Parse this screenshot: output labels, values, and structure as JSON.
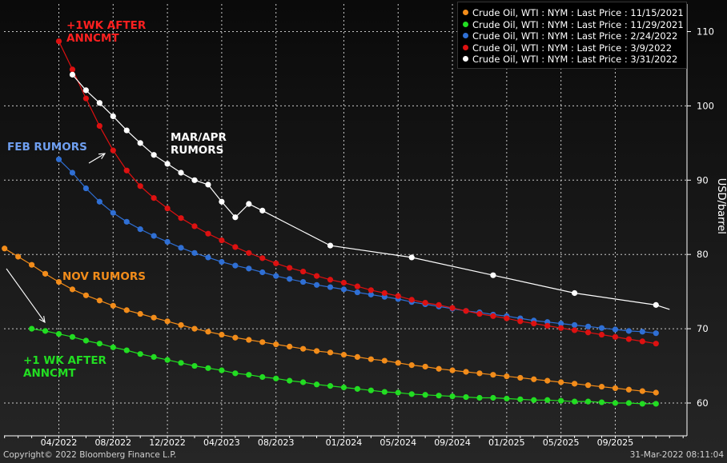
{
  "chart_data": {
    "type": "line",
    "ylabel": "USD/barrel",
    "ylim": [
      56,
      116
    ],
    "yticks": [
      60,
      70,
      80,
      90,
      100,
      110
    ],
    "x_ticks": [
      "04/2022",
      "08/2022",
      "12/2022",
      "04/2023",
      "08/2023",
      "01/2024",
      "05/2024",
      "09/2024",
      "01/2025",
      "05/2025",
      "09/2025"
    ],
    "grid": true,
    "legend_position": "top-right",
    "series": [
      {
        "name": "Crude Oil, WTI : NYM : Last Price : 11/15/2021",
        "color": "#f28c1a",
        "x": [
          "2021-12-01",
          "2022-01-01",
          "2022-02-01",
          "2022-03-01",
          "2022-04-01",
          "2022-05-01",
          "2022-06-01",
          "2022-07-01",
          "2022-08-01",
          "2022-09-01",
          "2022-10-01",
          "2022-11-01",
          "2022-12-01",
          "2023-01-01",
          "2023-02-01",
          "2023-03-01",
          "2023-04-01",
          "2023-05-01",
          "2023-06-01",
          "2023-07-01",
          "2023-08-01",
          "2023-09-01",
          "2023-10-01",
          "2023-11-01",
          "2023-12-01",
          "2024-01-01",
          "2024-02-01",
          "2024-03-01",
          "2024-04-01",
          "2024-05-01",
          "2024-06-01",
          "2024-07-01",
          "2024-08-01",
          "2024-09-01",
          "2024-10-01",
          "2024-11-01",
          "2024-12-01",
          "2025-01-01",
          "2025-02-01",
          "2025-03-01",
          "2025-04-01",
          "2025-05-01",
          "2025-06-01",
          "2025-07-01",
          "2025-08-01",
          "2025-09-01",
          "2025-10-01",
          "2025-11-01",
          "2025-12-01"
        ],
        "values": [
          80.8,
          79.7,
          78.6,
          77.4,
          76.3,
          75.3,
          74.5,
          73.8,
          73.1,
          72.5,
          72.0,
          71.5,
          71.0,
          70.5,
          70.0,
          69.6,
          69.2,
          68.8,
          68.5,
          68.2,
          67.9,
          67.6,
          67.3,
          67.0,
          66.8,
          66.5,
          66.2,
          65.9,
          65.7,
          65.4,
          65.1,
          64.9,
          64.6,
          64.4,
          64.2,
          64.0,
          63.8,
          63.6,
          63.4,
          63.2,
          63.0,
          62.8,
          62.6,
          62.4,
          62.2,
          62.0,
          61.8,
          61.6,
          61.4
        ]
      },
      {
        "name": "Crude Oil, WTI : NYM : Last Price : 11/29/2021",
        "color": "#22dd22",
        "x": [
          "2022-02-01",
          "2022-03-01",
          "2022-04-01",
          "2022-05-01",
          "2022-06-01",
          "2022-07-01",
          "2022-08-01",
          "2022-09-01",
          "2022-10-01",
          "2022-11-01",
          "2022-12-01",
          "2023-01-01",
          "2023-02-01",
          "2023-03-01",
          "2023-04-01",
          "2023-05-01",
          "2023-06-01",
          "2023-07-01",
          "2023-08-01",
          "2023-09-01",
          "2023-10-01",
          "2023-11-01",
          "2023-12-01",
          "2024-01-01",
          "2024-02-01",
          "2024-03-01",
          "2024-04-01",
          "2024-05-01",
          "2024-06-01",
          "2024-07-01",
          "2024-08-01",
          "2024-09-01",
          "2024-10-01",
          "2024-11-01",
          "2024-12-01",
          "2025-01-01",
          "2025-02-01",
          "2025-03-01",
          "2025-04-01",
          "2025-05-01",
          "2025-06-01",
          "2025-07-01",
          "2025-08-01",
          "2025-09-01",
          "2025-10-01",
          "2025-11-01",
          "2025-12-01"
        ],
        "values": [
          70.0,
          69.7,
          69.3,
          68.9,
          68.4,
          68.0,
          67.5,
          67.1,
          66.6,
          66.2,
          65.8,
          65.4,
          65.0,
          64.7,
          64.4,
          64.0,
          63.8,
          63.5,
          63.3,
          63.0,
          62.8,
          62.5,
          62.3,
          62.1,
          61.9,
          61.7,
          61.5,
          61.4,
          61.2,
          61.1,
          61.0,
          60.9,
          60.8,
          60.7,
          60.7,
          60.6,
          60.5,
          60.4,
          60.4,
          60.3,
          60.2,
          60.2,
          60.1,
          60.0,
          60.0,
          59.9,
          59.9
        ]
      },
      {
        "name": "Crude Oil, WTI : NYM : Last Price : 2/24/2022",
        "color": "#2f6fd4",
        "x": [
          "2022-04-01",
          "2022-05-01",
          "2022-06-01",
          "2022-07-01",
          "2022-08-01",
          "2022-09-01",
          "2022-10-01",
          "2022-11-01",
          "2022-12-01",
          "2023-01-01",
          "2023-02-01",
          "2023-03-01",
          "2023-04-01",
          "2023-05-01",
          "2023-06-01",
          "2023-07-01",
          "2023-08-01",
          "2023-09-01",
          "2023-10-01",
          "2023-11-01",
          "2023-12-01",
          "2024-01-01",
          "2024-02-01",
          "2024-03-01",
          "2024-04-01",
          "2024-05-01",
          "2024-06-01",
          "2024-07-01",
          "2024-08-01",
          "2024-09-01",
          "2024-10-01",
          "2024-11-01",
          "2024-12-01",
          "2025-01-01",
          "2025-02-01",
          "2025-03-01",
          "2025-04-01",
          "2025-05-01",
          "2025-06-01",
          "2025-07-01",
          "2025-08-01",
          "2025-09-01",
          "2025-10-01",
          "2025-11-01",
          "2025-12-01"
        ],
        "values": [
          92.8,
          91.0,
          88.9,
          87.1,
          85.6,
          84.4,
          83.4,
          82.5,
          81.7,
          80.9,
          80.2,
          79.6,
          79.0,
          78.5,
          78.1,
          77.6,
          77.1,
          76.7,
          76.3,
          75.9,
          75.6,
          75.3,
          74.9,
          74.6,
          74.3,
          74.0,
          73.6,
          73.3,
          73.0,
          72.7,
          72.4,
          72.2,
          71.9,
          71.7,
          71.4,
          71.1,
          70.9,
          70.7,
          70.5,
          70.3,
          70.1,
          69.9,
          69.7,
          69.6,
          69.4
        ]
      },
      {
        "name": "Crude Oil, WTI : NYM : Last Price : 3/9/2022",
        "color": "#dd1111",
        "x": [
          "2022-04-01",
          "2022-05-01",
          "2022-06-01",
          "2022-07-01",
          "2022-08-01",
          "2022-09-01",
          "2022-10-01",
          "2022-11-01",
          "2022-12-01",
          "2023-01-01",
          "2023-02-01",
          "2023-03-01",
          "2023-04-01",
          "2023-05-01",
          "2023-06-01",
          "2023-07-01",
          "2023-08-01",
          "2023-09-01",
          "2023-10-01",
          "2023-11-01",
          "2023-12-01",
          "2024-01-01",
          "2024-02-01",
          "2024-03-01",
          "2024-04-01",
          "2024-05-01",
          "2024-06-01",
          "2024-07-01",
          "2024-08-01",
          "2024-09-01",
          "2024-10-01",
          "2024-11-01",
          "2024-12-01",
          "2025-01-01",
          "2025-02-01",
          "2025-03-01",
          "2025-04-01",
          "2025-05-01",
          "2025-06-01",
          "2025-07-01",
          "2025-08-01",
          "2025-09-01",
          "2025-10-01",
          "2025-11-01",
          "2025-12-01"
        ],
        "values": [
          108.7,
          104.9,
          101.0,
          97.3,
          94.0,
          91.3,
          89.2,
          87.6,
          86.2,
          84.9,
          83.8,
          82.8,
          81.9,
          81.0,
          80.2,
          79.5,
          78.8,
          78.2,
          77.7,
          77.1,
          76.6,
          76.2,
          75.7,
          75.2,
          74.8,
          74.4,
          73.9,
          73.5,
          73.2,
          72.8,
          72.4,
          72.0,
          71.7,
          71.4,
          71.0,
          70.7,
          70.4,
          70.1,
          69.8,
          69.5,
          69.2,
          68.9,
          68.6,
          68.3,
          68.0
        ]
      },
      {
        "name": "Crude Oil, WTI : NYM : Last Price : 3/31/2022",
        "color": "#ffffff",
        "x": [
          "2022-05-01",
          "2022-06-01",
          "2022-07-01",
          "2022-08-01",
          "2022-09-01",
          "2022-10-01",
          "2022-11-01",
          "2022-12-01",
          "2023-01-01",
          "2023-02-01",
          "2023-03-01",
          "2023-04-01",
          "2023-05-01",
          "2023-06-01",
          "2023-07-01",
          "2023-12-01",
          "2024-06-01",
          "2024-12-01",
          "2025-06-01",
          "2025-12-01"
        ],
        "values": [
          104.2,
          102.1,
          100.4,
          98.6,
          96.7,
          95.0,
          93.4,
          92.2,
          91.0,
          90.0,
          89.4,
          87.1,
          85.0,
          86.8,
          85.9,
          81.2,
          79.6,
          77.2,
          74.8,
          73.2
        ]
      },
      {
        "name": "",
        "color": "#ffffff",
        "markers": false,
        "x": [
          "2025-12-01",
          "2026-01-01"
        ],
        "values": [
          73.2,
          72.6
        ]
      }
    ],
    "annotations": [
      {
        "text": "+1WK AFTER\nANNCMT",
        "color": "#ff2020"
      },
      {
        "text": "MAR/APR\nRUMORS",
        "color": "#ffffff"
      },
      {
        "text": "FEB RUMORS",
        "color": "#6f9ff0"
      },
      {
        "text": "NOV RUMORS",
        "color": "#f28c1a"
      },
      {
        "text": "+1 WK AFTER\nANNCMT",
        "color": "#22dd22"
      }
    ]
  },
  "footer": {
    "copyright": "Copyright© 2022 Bloomberg Finance L.P.",
    "timestamp": "31-Mar-2022 08:11:04"
  },
  "colors": {
    "background": "#000000",
    "grid": "#bbbbbb",
    "axis_text": "#ffffff"
  }
}
